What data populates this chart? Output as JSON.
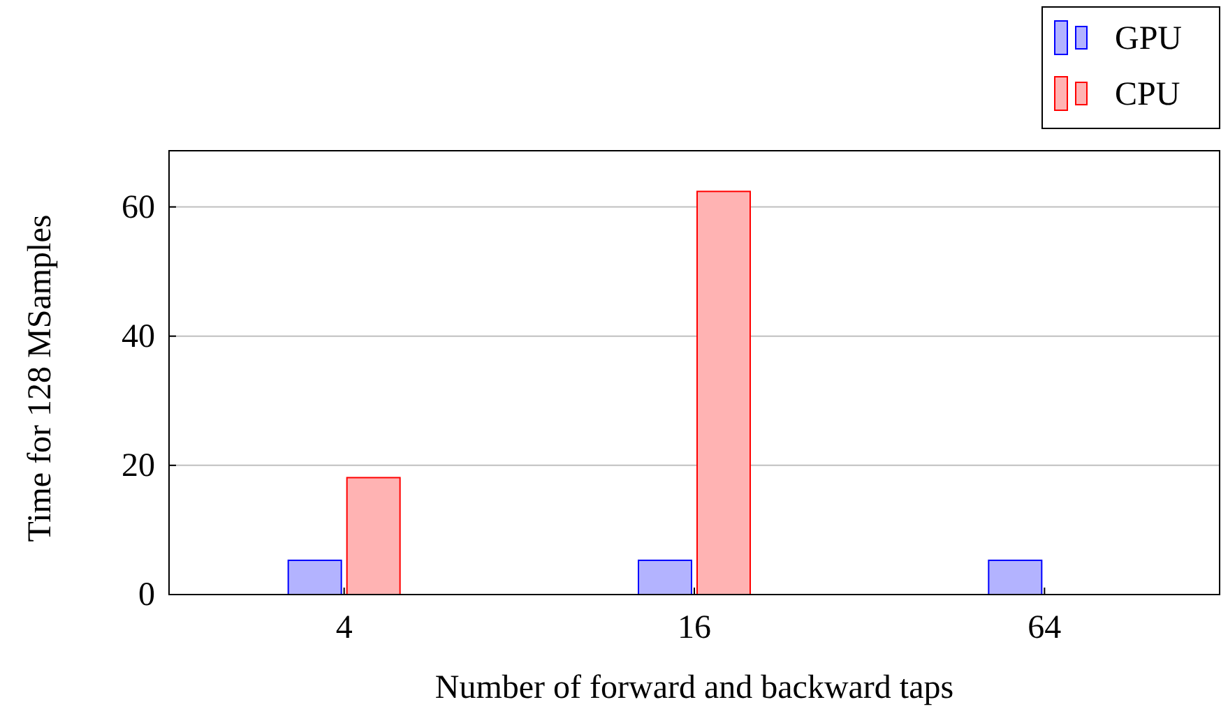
{
  "chart_data": {
    "type": "bar",
    "xlabel": "Number of forward and backward taps",
    "ylabel": "Time for 128 MSamples",
    "categories": [
      "4",
      "16",
      "64"
    ],
    "series": [
      {
        "name": "GPU",
        "color": "#b3b3ff",
        "values": [
          5.3,
          5.3,
          5.3
        ]
      },
      {
        "name": "CPU",
        "color": "#ffb3b3",
        "values": [
          18.1,
          62.4,
          null
        ]
      }
    ],
    "ylim": [
      0,
      68.7
    ],
    "yticks": [
      0,
      20,
      40,
      60
    ],
    "grid": "y",
    "legend": "top right"
  }
}
